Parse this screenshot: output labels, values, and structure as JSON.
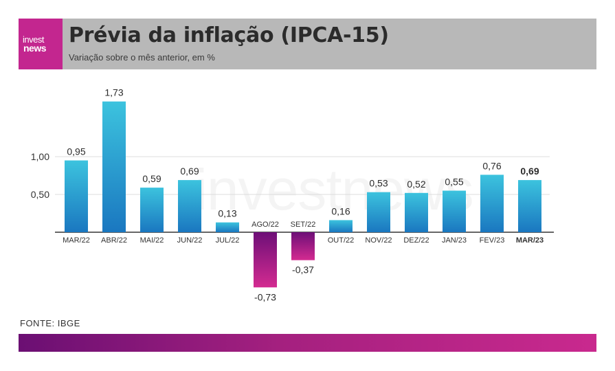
{
  "header": {
    "logo_top": "invest",
    "logo_bottom": "news",
    "title": "Prévia da inflação (IPCA-15)",
    "subtitle": "Variação sobre o mês anterior, em %"
  },
  "watermark": "investnews",
  "source": "FONTE: IBGE",
  "colors": {
    "positive_top": "#3cc3de",
    "positive_bottom": "#1a77c0",
    "negative_top": "#6d0f77",
    "negative_bottom": "#d42b91",
    "header_bg": "#b8b8b8",
    "logo_bg": "#c3268f"
  },
  "chart_data": {
    "type": "bar",
    "title": "Prévia da inflação (IPCA-15)",
    "subtitle": "Variação sobre o mês anterior, em %",
    "categories": [
      "MAR/22",
      "ABR/22",
      "MAI/22",
      "JUN/22",
      "JUL/22",
      "AGO/22",
      "SET/22",
      "OUT/22",
      "NOV/22",
      "DEZ/22",
      "JAN/23",
      "FEV/23",
      "MAR/23"
    ],
    "values": [
      0.95,
      1.73,
      0.59,
      0.69,
      0.13,
      -0.73,
      -0.37,
      0.16,
      0.53,
      0.52,
      0.55,
      0.76,
      0.69
    ],
    "value_labels": [
      "0,95",
      "1,73",
      "0,59",
      "0,69",
      "0,13",
      "-0,73",
      "-0,37",
      "0,16",
      "0,53",
      "0,52",
      "0,55",
      "0,76",
      "0,69"
    ],
    "y_ticks": [
      0.5,
      1.0
    ],
    "y_tick_labels": [
      "0,50",
      "1,00"
    ],
    "highlight_last": true,
    "grid": true
  }
}
